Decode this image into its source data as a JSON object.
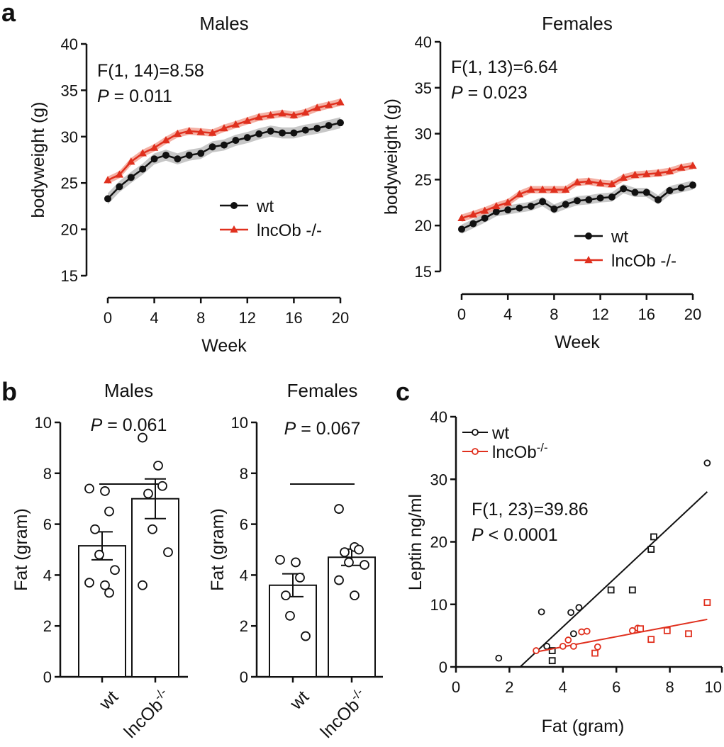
{
  "figure": {
    "panel_letters": [
      "a",
      "b",
      "c"
    ]
  },
  "chart_data": [
    {
      "id": "a_males",
      "type": "line",
      "title": "Males",
      "xlabel": "Week",
      "ylabel": "bodyweight (g)",
      "xlim": [
        0,
        20
      ],
      "ylim": [
        15,
        40
      ],
      "xticks": [
        0,
        4,
        8,
        12,
        16,
        20
      ],
      "yticks": [
        15,
        20,
        25,
        30,
        35,
        40
      ],
      "stat_lines": [
        "F(1, 14)=8.58",
        "P",
        " = 0.011"
      ],
      "legend_position": "center-right",
      "x": [
        0,
        1,
        2,
        3,
        4,
        5,
        6,
        7,
        8,
        9,
        10,
        11,
        12,
        13,
        14,
        15,
        16,
        17,
        18,
        19,
        20
      ],
      "series": [
        {
          "name": "wt",
          "marker": "circle",
          "color": "#111111",
          "band_color": "#bdbdbd",
          "values": [
            23.3,
            24.6,
            25.6,
            26.5,
            27.6,
            28.0,
            27.6,
            28.0,
            28.2,
            28.9,
            29.1,
            29.6,
            29.9,
            30.3,
            30.6,
            30.4,
            30.4,
            30.7,
            30.9,
            31.2,
            31.5
          ],
          "sem": [
            0.6,
            0.6,
            0.6,
            0.6,
            0.6,
            0.6,
            0.6,
            0.6,
            0.6,
            0.6,
            0.6,
            0.6,
            0.6,
            0.6,
            0.6,
            0.6,
            0.6,
            0.6,
            0.6,
            0.6,
            0.6
          ]
        },
        {
          "name": "lncOb -/-",
          "marker": "triangle",
          "color": "#e0301e",
          "band_color": "#f2a294",
          "values": [
            25.3,
            25.9,
            27.3,
            28.2,
            28.8,
            29.6,
            30.3,
            30.6,
            30.5,
            30.4,
            30.9,
            31.3,
            31.7,
            32.1,
            32.3,
            32.5,
            32.3,
            32.6,
            33.1,
            33.4,
            33.7
          ],
          "sem": [
            0.4,
            0.4,
            0.4,
            0.4,
            0.4,
            0.4,
            0.4,
            0.4,
            0.4,
            0.4,
            0.4,
            0.4,
            0.4,
            0.4,
            0.4,
            0.4,
            0.4,
            0.4,
            0.4,
            0.4,
            0.4
          ]
        }
      ]
    },
    {
      "id": "a_females",
      "type": "line",
      "title": "Females",
      "xlabel": "Week",
      "ylabel": "bodyweight (g)",
      "xlim": [
        0,
        20
      ],
      "ylim": [
        15,
        40
      ],
      "xticks": [
        0,
        4,
        8,
        12,
        16,
        20
      ],
      "yticks": [
        15,
        20,
        25,
        30,
        35,
        40
      ],
      "stat_lines": [
        "F(1, 13)=6.64",
        "P",
        " = 0.023"
      ],
      "legend_position": "bottom-right",
      "x": [
        0,
        1,
        2,
        3,
        4,
        5,
        6,
        7,
        8,
        9,
        10,
        11,
        12,
        13,
        14,
        15,
        16,
        17,
        18,
        19,
        20
      ],
      "series": [
        {
          "name": "wt",
          "marker": "circle",
          "color": "#111111",
          "band_color": "#bdbdbd",
          "values": [
            19.6,
            20.2,
            20.8,
            21.5,
            21.7,
            21.9,
            22.1,
            22.6,
            21.8,
            22.3,
            22.7,
            22.8,
            23.0,
            23.1,
            24.0,
            23.6,
            23.6,
            22.8,
            23.8,
            24.1,
            24.4
          ],
          "sem": [
            0.5,
            0.5,
            0.5,
            0.5,
            0.5,
            0.5,
            0.5,
            0.5,
            0.5,
            0.5,
            0.5,
            0.5,
            0.5,
            0.5,
            0.5,
            0.5,
            0.5,
            0.5,
            0.5,
            0.5,
            0.5
          ]
        },
        {
          "name": "lncOb -/-",
          "marker": "triangle",
          "color": "#e0301e",
          "band_color": "#f2a294",
          "values": [
            20.8,
            21.2,
            21.6,
            22.1,
            22.5,
            23.4,
            23.9,
            23.9,
            23.9,
            23.9,
            24.7,
            24.8,
            24.6,
            24.5,
            25.2,
            25.5,
            25.6,
            25.7,
            25.9,
            26.3,
            26.5
          ],
          "sem": [
            0.4,
            0.4,
            0.4,
            0.4,
            0.4,
            0.4,
            0.4,
            0.4,
            0.4,
            0.4,
            0.4,
            0.4,
            0.4,
            0.4,
            0.4,
            0.4,
            0.4,
            0.4,
            0.4,
            0.4,
            0.4
          ]
        }
      ]
    },
    {
      "id": "b_males",
      "type": "bar",
      "title": "Males",
      "ylabel": "Fat (gram)",
      "ylim": [
        0,
        10
      ],
      "yticks": [
        0,
        2,
        4,
        6,
        8,
        10
      ],
      "categories": [
        "wt",
        "lncOb"
      ],
      "category_superscripts": [
        "",
        "-/-"
      ],
      "means": [
        5.15,
        7.0
      ],
      "sem": [
        0.55,
        0.78
      ],
      "points": [
        [
          7.4,
          7.3,
          6.5,
          5.8,
          4.8,
          4.2,
          3.7,
          3.6,
          3.3
        ],
        [
          9.4,
          8.3,
          7.5,
          7.2,
          5.8,
          4.9,
          3.6
        ]
      ],
      "pvalue_label": "P",
      "pvalue_text": " = 0.061"
    },
    {
      "id": "b_females",
      "type": "bar",
      "title": "Females",
      "ylabel": "Fat (gram)",
      "ylim": [
        0,
        10
      ],
      "yticks": [
        0,
        2,
        4,
        6,
        8,
        10
      ],
      "categories": [
        "wt",
        "lncOb"
      ],
      "category_superscripts": [
        "",
        "-/-"
      ],
      "means": [
        3.6,
        4.7
      ],
      "sem": [
        0.45,
        0.32
      ],
      "points": [
        [
          4.6,
          4.5,
          3.9,
          3.2,
          2.4,
          1.6
        ],
        [
          6.6,
          5.1,
          5.0,
          4.9,
          4.5,
          4.4,
          3.8,
          3.2
        ]
      ],
      "pvalue_label": "P",
      "pvalue_text": " = 0.067"
    },
    {
      "id": "c",
      "type": "scatter",
      "xlabel": "Fat (gram)",
      "ylabel": "Leptin ng/ml",
      "xlim": [
        0,
        10
      ],
      "ylim": [
        0,
        40
      ],
      "xticks": [
        0,
        2,
        4,
        6,
        8,
        10
      ],
      "yticks": [
        0,
        10,
        20,
        30,
        40
      ],
      "stat_lines": [
        "F(1, 23)=39.86",
        "P",
        " < 0.0001"
      ],
      "legend_position": "top-left",
      "series": [
        {
          "name": "wt",
          "superscript": "",
          "color": "#111111",
          "circles": [
            [
              1.6,
              1.4
            ],
            [
              3.2,
              8.8
            ],
            [
              3.4,
              3.3
            ],
            [
              4.3,
              8.7
            ],
            [
              4.4,
              5.3
            ],
            [
              4.6,
              9.5
            ],
            [
              9.4,
              32.6
            ]
          ],
          "squares": [
            [
              3.6,
              1.0
            ],
            [
              3.6,
              2.6
            ],
            [
              5.8,
              12.3
            ],
            [
              6.6,
              12.3
            ],
            [
              7.3,
              18.8
            ],
            [
              7.4,
              20.8
            ]
          ],
          "fit": [
            [
              2.4,
              0
            ],
            [
              9.4,
              28.0
            ]
          ]
        },
        {
          "name": "lncOb",
          "superscript": "-/-",
          "color": "#e0301e",
          "circles": [
            [
              3.0,
              2.6
            ],
            [
              4.0,
              3.3
            ],
            [
              4.2,
              4.3
            ],
            [
              4.4,
              3.3
            ],
            [
              4.7,
              5.6
            ],
            [
              4.9,
              5.7
            ],
            [
              5.3,
              3.2
            ],
            [
              6.6,
              5.8
            ],
            [
              6.8,
              6.2
            ]
          ],
          "squares": [
            [
              5.2,
              2.2
            ],
            [
              6.9,
              6.1
            ],
            [
              7.3,
              4.4
            ],
            [
              7.9,
              5.8
            ],
            [
              8.7,
              5.3
            ],
            [
              9.4,
              10.3
            ]
          ],
          "fit": [
            [
              3.0,
              2.4
            ],
            [
              9.4,
              7.6
            ]
          ]
        }
      ]
    }
  ]
}
